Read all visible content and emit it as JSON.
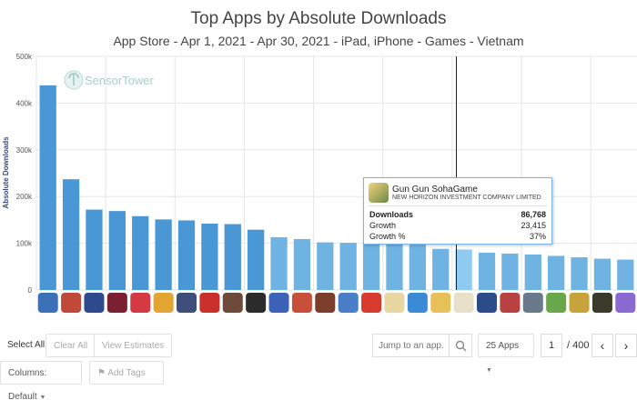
{
  "chart_data": {
    "type": "bar",
    "title": "Top Apps by Absolute Downloads",
    "subtitle": "App Store - Apr 1, 2021 - Apr 30, 2021 - iPad, iPhone - Games - Vietnam",
    "ylabel": "Absolute Downloads",
    "ylim": [
      0,
      500000
    ],
    "y_ticks": [
      "0",
      "100k",
      "200k",
      "300k",
      "400k",
      "500k"
    ],
    "y_tick_values": [
      0,
      100000,
      200000,
      300000,
      400000,
      500000
    ],
    "grid": true,
    "watermark": "SensorTower",
    "values": [
      438000,
      237000,
      172000,
      169000,
      158000,
      151000,
      149000,
      142000,
      141000,
      129000,
      113000,
      109000,
      102000,
      101000,
      100000,
      99000,
      97000,
      88000,
      86768,
      80000,
      78000,
      76000,
      73000,
      70000,
      67000,
      65000
    ],
    "highlight_index": 18,
    "colors": {
      "bar": "#4a97d5",
      "bar_light": "#6fb3e3",
      "highlight": "#8fcaf0",
      "grid": "#e6e6e6"
    },
    "icon_colors": [
      "#3b6fb6",
      "#c04a3a",
      "#2e4a8e",
      "#7a2030",
      "#d33a44",
      "#e2a531",
      "#3d4e7a",
      "#c9302c",
      "#6d4a3a",
      "#2b2b2b",
      "#3d63b8",
      "#c8503a",
      "#7a3e2a",
      "#4a7ec9",
      "#d83a2f",
      "#e9d7a2",
      "#3a8ad6",
      "#e8c05a",
      "#e8e0c8",
      "#2c4b8a",
      "#b84242",
      "#6a7a8a",
      "#68a84a",
      "#c8a23a",
      "#3a3a2a",
      "#8a6ad0"
    ]
  },
  "tooltip": {
    "app_name": "Gun Gun SohaGame",
    "publisher": "NEW HORIZON INVESTMENT COMPANY LIMITED",
    "rows": [
      {
        "label": "Downloads",
        "value": "86,768"
      },
      {
        "label": "Growth",
        "value": "23,415"
      },
      {
        "label": "Growth %",
        "value": "37%"
      }
    ]
  },
  "toolbar": {
    "select_all": "Select All",
    "clear_all": "Clear All",
    "view_estimates": "View Estimates",
    "search_placeholder": "Jump to an app...",
    "apps_per_page": "25 Apps",
    "page": "1",
    "page_total": "/ 400",
    "columns": "Columns: Default",
    "add_tags": "Add Tags"
  }
}
